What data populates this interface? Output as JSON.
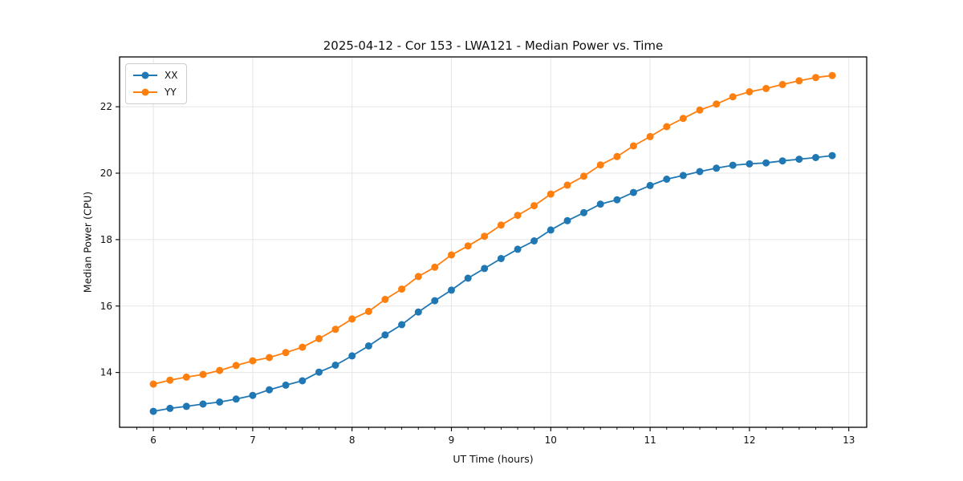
{
  "chart_data": {
    "type": "line",
    "title": "2025-04-12 - Cor 153 - LWA121 - Median Power vs. Time",
    "xlabel": "UT Time (hours)",
    "ylabel": "Median Power (CPU)",
    "xlim": [
      5.66,
      13.18
    ],
    "ylim": [
      12.35,
      23.5
    ],
    "x_ticks": [
      6,
      7,
      8,
      9,
      10,
      11,
      12,
      13
    ],
    "y_ticks": [
      14,
      16,
      18,
      20,
      22
    ],
    "x_minor_step": 0.16667,
    "grid": true,
    "legend_position": "upper left",
    "x": [
      6.0,
      6.167,
      6.333,
      6.5,
      6.667,
      6.833,
      7.0,
      7.167,
      7.333,
      7.5,
      7.667,
      7.833,
      8.0,
      8.167,
      8.333,
      8.5,
      8.667,
      8.833,
      9.0,
      9.167,
      9.333,
      9.5,
      9.667,
      9.833,
      10.0,
      10.167,
      10.333,
      10.5,
      10.667,
      10.833,
      11.0,
      11.167,
      11.333,
      11.5,
      11.667,
      11.833,
      12.0,
      12.167,
      12.333,
      12.5,
      12.667,
      12.833
    ],
    "series": [
      {
        "name": "XX",
        "color": "#1f77b4",
        "values": [
          12.83,
          12.92,
          12.98,
          13.05,
          13.11,
          13.2,
          13.31,
          13.48,
          13.62,
          13.75,
          14.01,
          14.22,
          14.5,
          14.8,
          15.13,
          15.44,
          15.82,
          16.16,
          16.48,
          16.84,
          17.13,
          17.43,
          17.71,
          17.96,
          18.29,
          18.57,
          18.81,
          19.07,
          19.2,
          19.42,
          19.63,
          19.82,
          19.93,
          20.05,
          20.15,
          20.24,
          20.28,
          20.31,
          20.37,
          20.42,
          20.47,
          20.53
        ]
      },
      {
        "name": "YY",
        "color": "#ff7f0e",
        "values": [
          13.65,
          13.77,
          13.86,
          13.94,
          14.06,
          14.21,
          14.35,
          14.45,
          14.6,
          14.76,
          15.02,
          15.3,
          15.61,
          15.84,
          16.2,
          16.51,
          16.89,
          17.17,
          17.54,
          17.81,
          18.1,
          18.44,
          18.73,
          19.02,
          19.37,
          19.64,
          19.91,
          20.25,
          20.5,
          20.82,
          21.1,
          21.4,
          21.65,
          21.9,
          22.08,
          22.3,
          22.45,
          22.55,
          22.67,
          22.78,
          22.88,
          22.94
        ]
      }
    ],
    "style": {
      "grid_color": "#e5e5e5",
      "spine_color": "#000000",
      "tick_label_color": "#111111",
      "marker_radius": 4.5,
      "line_width": 1.8
    }
  }
}
